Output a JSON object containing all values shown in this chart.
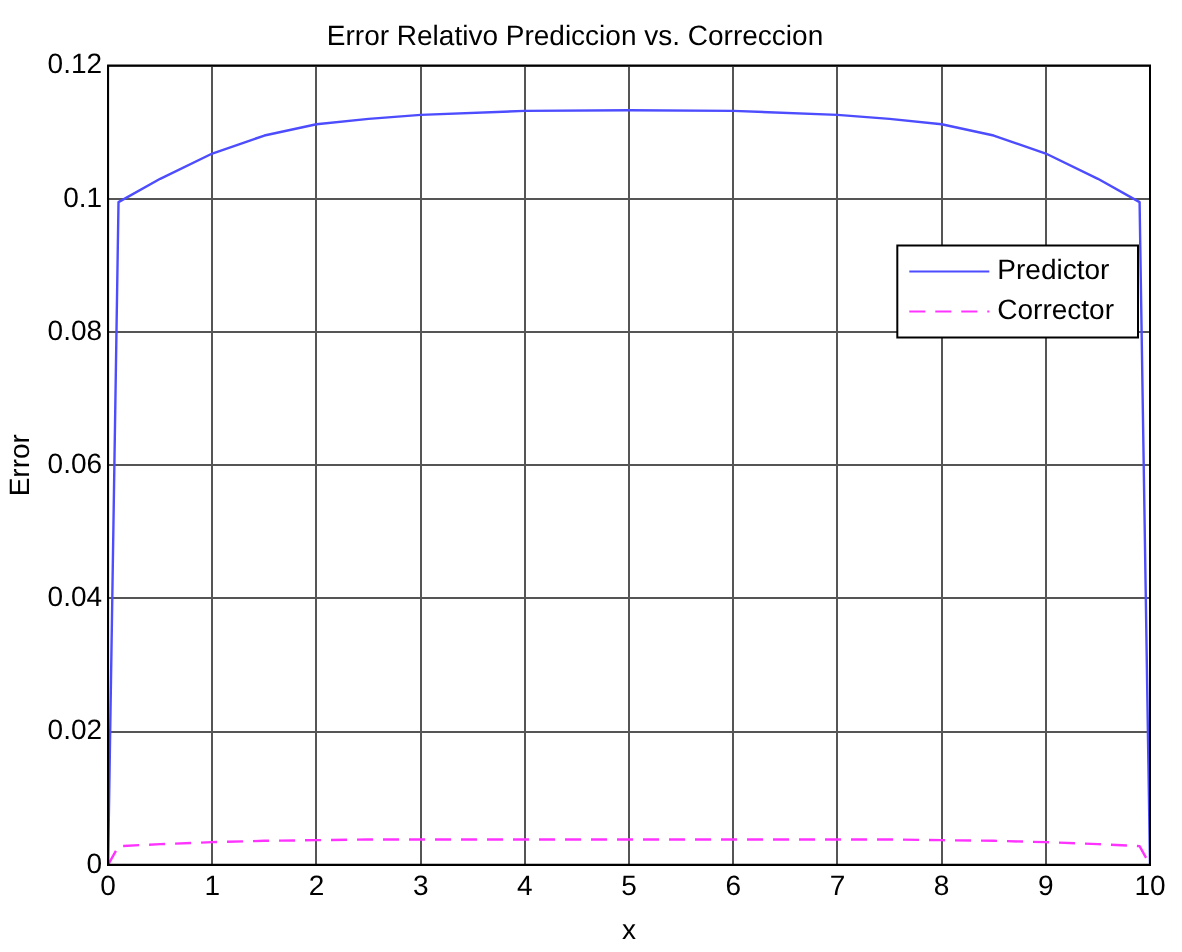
{
  "chart_data": {
    "type": "line",
    "title": "Error Relativo Prediccion vs. Correccion",
    "xlabel": "x",
    "ylabel": "Error",
    "x": [
      0,
      0.1,
      0.5,
      1,
      1.5,
      2,
      2.5,
      3,
      4,
      5,
      6,
      7,
      7.5,
      8,
      8.5,
      9,
      9.5,
      9.9,
      10
    ],
    "series": [
      {
        "name": "Predictor",
        "color": "#4d4dff",
        "line_style": "solid",
        "values": [
          0,
          0.0995,
          0.103,
          0.1068,
          0.1095,
          0.1112,
          0.112,
          0.1126,
          0.1132,
          0.1133,
          0.1132,
          0.1126,
          0.112,
          0.1112,
          0.1095,
          0.1068,
          0.103,
          0.0995,
          0
        ]
      },
      {
        "name": "Corrector",
        "color": "#ff33ff",
        "line_style": "dashed",
        "values": [
          0,
          0.0028,
          0.0031,
          0.0034,
          0.0036,
          0.0037,
          0.0038,
          0.0038,
          0.0038,
          0.0038,
          0.0038,
          0.0038,
          0.0038,
          0.0037,
          0.0036,
          0.0034,
          0.0031,
          0.0028,
          0
        ]
      }
    ],
    "xlim": [
      0,
      10
    ],
    "xticks": [
      0,
      1,
      2,
      3,
      4,
      5,
      6,
      7,
      8,
      9,
      10
    ],
    "ylim": [
      0,
      0.12
    ],
    "yticks": [
      0,
      0.02,
      0.04,
      0.06,
      0.08,
      0.1,
      0.12
    ],
    "grid": true,
    "legend": "top right",
    "marker": "none"
  }
}
